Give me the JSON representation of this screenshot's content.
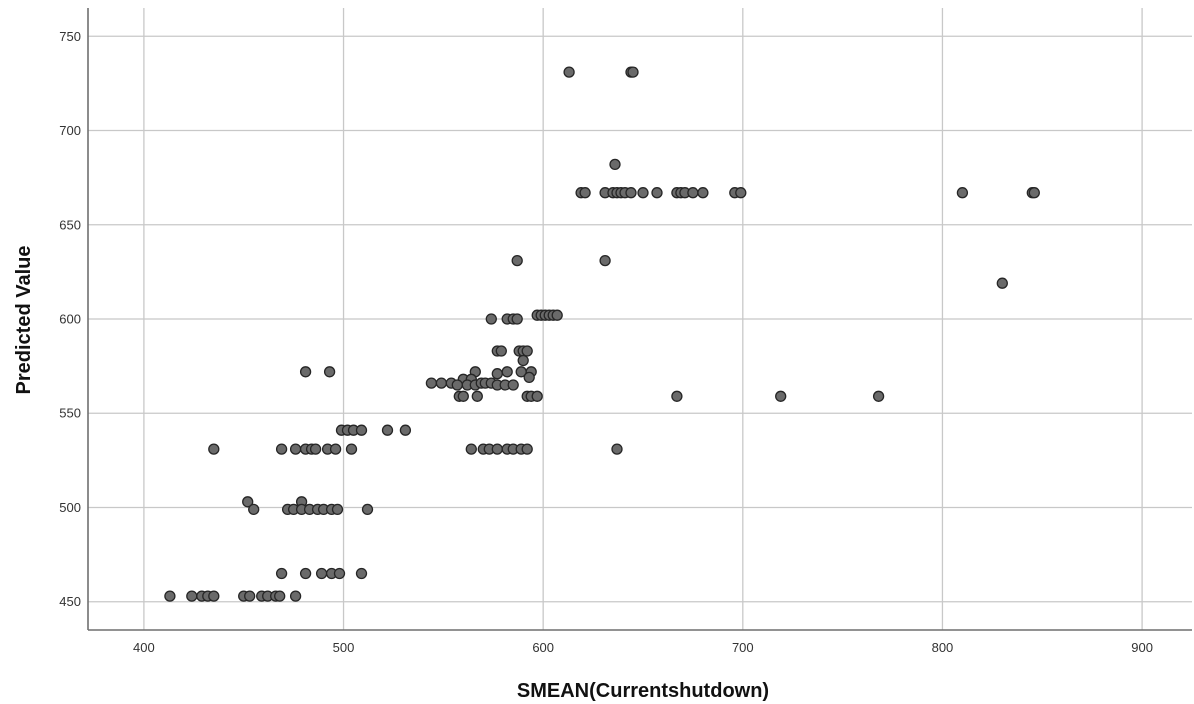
{
  "chart_data": {
    "type": "scatter",
    "xlabel": "SMEAN(Currentshutdown)",
    "ylabel": "Predicted Value",
    "xlim": [
      372,
      925
    ],
    "ylim": [
      435,
      765
    ],
    "x_ticks": [
      "400",
      "500",
      "600",
      "700",
      "800",
      "900"
    ],
    "y_ticks": [
      "450",
      "500",
      "550",
      "600",
      "650",
      "700",
      "750"
    ],
    "grid": true,
    "marker_color": "#6a6a6a",
    "marker_edge_color": "#262626",
    "points": [
      [
        613,
        731
      ],
      [
        644,
        731
      ],
      [
        645,
        731
      ],
      [
        636,
        682
      ],
      [
        619,
        667
      ],
      [
        621,
        667
      ],
      [
        631,
        667
      ],
      [
        635,
        667
      ],
      [
        637,
        667
      ],
      [
        639,
        667
      ],
      [
        641,
        667
      ],
      [
        644,
        667
      ],
      [
        650,
        667
      ],
      [
        657,
        667
      ],
      [
        667,
        667
      ],
      [
        669,
        667
      ],
      [
        671,
        667
      ],
      [
        675,
        667
      ],
      [
        680,
        667
      ],
      [
        696,
        667
      ],
      [
        699,
        667
      ],
      [
        810,
        667
      ],
      [
        845,
        667
      ],
      [
        846,
        667
      ],
      [
        587,
        631
      ],
      [
        631,
        631
      ],
      [
        830,
        619
      ],
      [
        597,
        602
      ],
      [
        599,
        602
      ],
      [
        601,
        602
      ],
      [
        603,
        602
      ],
      [
        605,
        602
      ],
      [
        607,
        602
      ],
      [
        574,
        600
      ],
      [
        582,
        600
      ],
      [
        585,
        600
      ],
      [
        587,
        600
      ],
      [
        577,
        583
      ],
      [
        579,
        583
      ],
      [
        588,
        583
      ],
      [
        590,
        583
      ],
      [
        592,
        583
      ],
      [
        590,
        578
      ],
      [
        481,
        572
      ],
      [
        493,
        572
      ],
      [
        566,
        572
      ],
      [
        577,
        571
      ],
      [
        582,
        572
      ],
      [
        589,
        572
      ],
      [
        594,
        572
      ],
      [
        560,
        568
      ],
      [
        564,
        568
      ],
      [
        593,
        569
      ],
      [
        544,
        566
      ],
      [
        549,
        566
      ],
      [
        554,
        566
      ],
      [
        557,
        565
      ],
      [
        562,
        565
      ],
      [
        566,
        565
      ],
      [
        569,
        566
      ],
      [
        571,
        566
      ],
      [
        574,
        566
      ],
      [
        577,
        565
      ],
      [
        581,
        565
      ],
      [
        585,
        565
      ],
      [
        558,
        559
      ],
      [
        560,
        559
      ],
      [
        567,
        559
      ],
      [
        592,
        559
      ],
      [
        594,
        559
      ],
      [
        597,
        559
      ],
      [
        667,
        559
      ],
      [
        719,
        559
      ],
      [
        768,
        559
      ],
      [
        499,
        541
      ],
      [
        502,
        541
      ],
      [
        505,
        541
      ],
      [
        509,
        541
      ],
      [
        522,
        541
      ],
      [
        531,
        541
      ],
      [
        435,
        531
      ],
      [
        469,
        531
      ],
      [
        476,
        531
      ],
      [
        481,
        531
      ],
      [
        484,
        531
      ],
      [
        486,
        531
      ],
      [
        492,
        531
      ],
      [
        496,
        531
      ],
      [
        504,
        531
      ],
      [
        564,
        531
      ],
      [
        570,
        531
      ],
      [
        573,
        531
      ],
      [
        577,
        531
      ],
      [
        582,
        531
      ],
      [
        585,
        531
      ],
      [
        589,
        531
      ],
      [
        592,
        531
      ],
      [
        637,
        531
      ],
      [
        452,
        503
      ],
      [
        479,
        503
      ],
      [
        455,
        499
      ],
      [
        472,
        499
      ],
      [
        475,
        499
      ],
      [
        479,
        499
      ],
      [
        483,
        499
      ],
      [
        487,
        499
      ],
      [
        490,
        499
      ],
      [
        494,
        499
      ],
      [
        497,
        499
      ],
      [
        512,
        499
      ],
      [
        469,
        465
      ],
      [
        481,
        465
      ],
      [
        489,
        465
      ],
      [
        494,
        465
      ],
      [
        498,
        465
      ],
      [
        509,
        465
      ],
      [
        413,
        453
      ],
      [
        424,
        453
      ],
      [
        429,
        453
      ],
      [
        432,
        453
      ],
      [
        435,
        453
      ],
      [
        450,
        453
      ],
      [
        453,
        453
      ],
      [
        459,
        453
      ],
      [
        462,
        453
      ],
      [
        466,
        453
      ],
      [
        468,
        453
      ],
      [
        476,
        453
      ]
    ]
  }
}
